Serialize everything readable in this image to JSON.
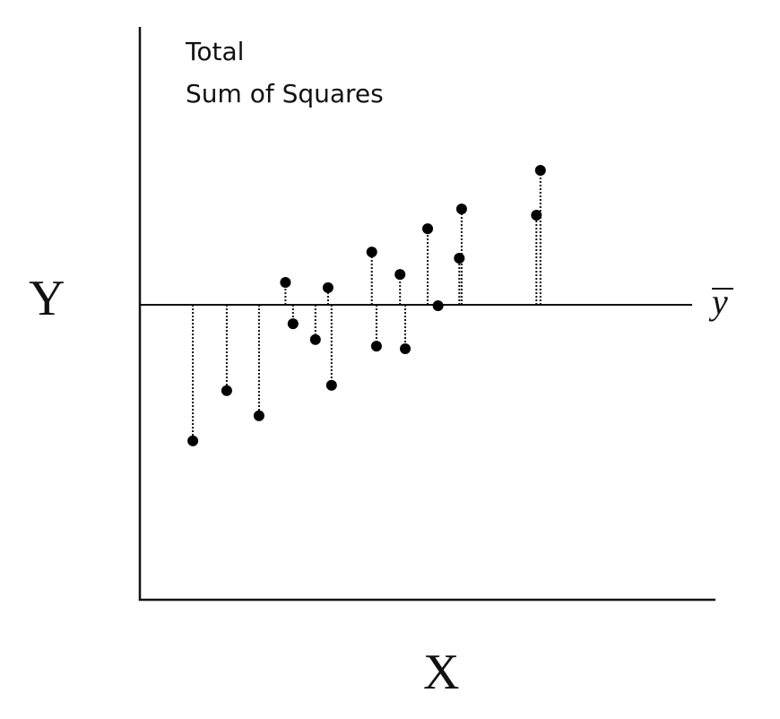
{
  "chart_data": {
    "type": "scatter",
    "title": [
      "Total",
      "Sum of Squares"
    ],
    "xlabel": "X",
    "ylabel": "Y",
    "mean_label": "y",
    "mean_y": 0,
    "xlim": [
      0,
      100
    ],
    "ylim": [
      -100,
      100
    ],
    "grid": false,
    "ticks": false,
    "points": [
      {
        "x": 9.2,
        "y": -46.1
      },
      {
        "x": 15.1,
        "y": -29.1
      },
      {
        "x": 20.7,
        "y": -37.6
      },
      {
        "x": 25.3,
        "y": 7.6
      },
      {
        "x": 26.6,
        "y": -6.4
      },
      {
        "x": 30.5,
        "y": -11.8
      },
      {
        "x": 32.7,
        "y": 5.8
      },
      {
        "x": 33.3,
        "y": -27.3
      },
      {
        "x": 40.3,
        "y": 17.9
      },
      {
        "x": 41.1,
        "y": -14.0
      },
      {
        "x": 45.2,
        "y": 10.3
      },
      {
        "x": 46.1,
        "y": -14.9
      },
      {
        "x": 50.0,
        "y": 25.8
      },
      {
        "x": 51.8,
        "y": -0.3
      },
      {
        "x": 55.5,
        "y": 15.8
      },
      {
        "x": 55.9,
        "y": 32.5
      },
      {
        "x": 68.9,
        "y": 30.4
      },
      {
        "x": 69.6,
        "y": 45.6
      }
    ]
  }
}
